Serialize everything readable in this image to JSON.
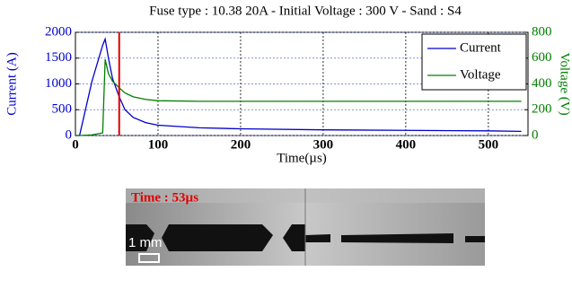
{
  "chart_data": {
    "type": "line",
    "title": "Fuse type : 10.38 20A - Initial Voltage : 300 V - Sand : S4",
    "xlabel": "Time(µs)",
    "ylabel": "Current (A)",
    "y2label": "Voltage (V)",
    "x": [
      0,
      5,
      20,
      33,
      36,
      40,
      45,
      53,
      60,
      70,
      85,
      100,
      150,
      200,
      300,
      400,
      500,
      540
    ],
    "series": [
      {
        "name": "Current",
        "color": "#0000cc",
        "values": [
          0,
          0,
          1050,
          1750,
          1870,
          1500,
          1100,
          750,
          500,
          350,
          250,
          200,
          150,
          130,
          110,
          100,
          90,
          80
        ]
      },
      {
        "name": "Voltage",
        "color": "#008000",
        "axis": "y2",
        "values": [
          0,
          0,
          5,
          20,
          590,
          480,
          420,
          370,
          330,
          300,
          280,
          270,
          265,
          265,
          265,
          265,
          265,
          265
        ]
      }
    ],
    "marker": {
      "x": 53,
      "color": "#e00000"
    },
    "xlim": [
      0,
      548
    ],
    "xticks": [
      0,
      100,
      200,
      300,
      400,
      500
    ],
    "ylim": [
      0,
      2000
    ],
    "yticks": [
      0,
      500,
      1000,
      1500,
      2000
    ],
    "y2lim": [
      0,
      800
    ],
    "y2ticks": [
      0,
      200,
      400,
      600,
      800
    ],
    "grid": true,
    "legend": "upper right"
  },
  "image": {
    "time_label": "Time : 53µs",
    "scale_label": "1 mm"
  }
}
